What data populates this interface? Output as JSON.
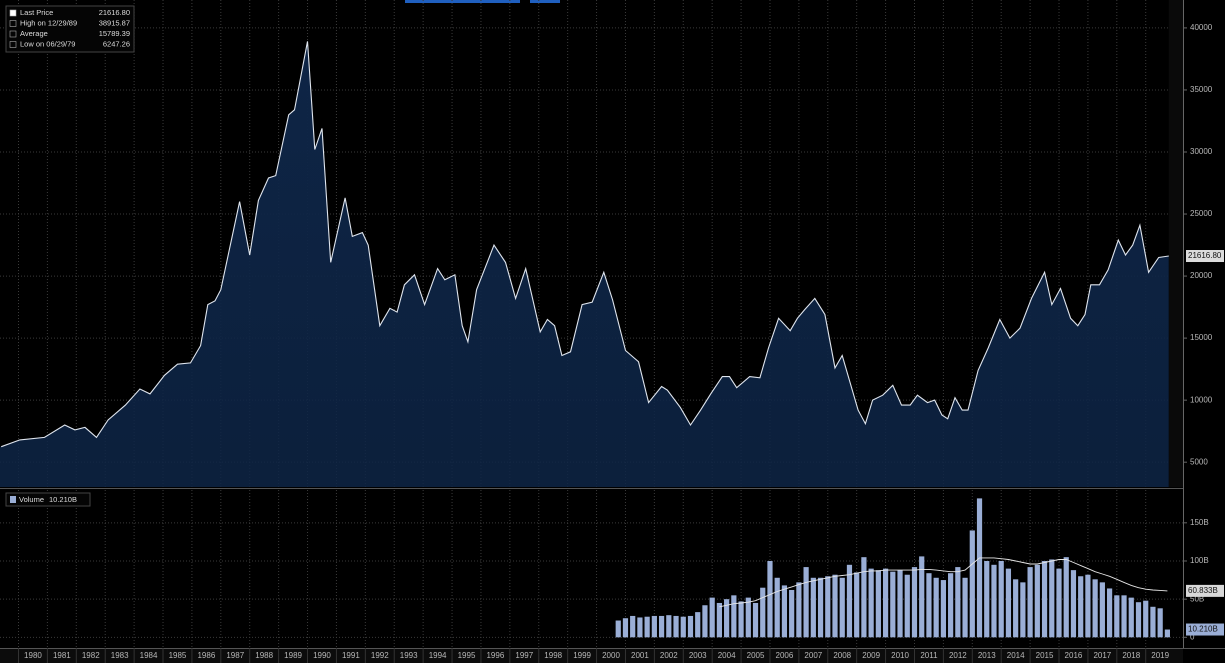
{
  "chart_data": [
    {
      "type": "area",
      "legend": [
        {
          "label": "Last Price",
          "value": "21616.80"
        },
        {
          "label": "High on 12/29/89",
          "value": "38915.87"
        },
        {
          "label": "Average",
          "value": "15789.39"
        },
        {
          "label": "Low on 06/29/79",
          "value": "6247.26"
        }
      ],
      "color": "#0e2546",
      "line_color": "#dfe5ee",
      "x": [
        1979.4,
        1980.05,
        1980.9,
        1981.6,
        1981.95,
        1982.3,
        1982.7,
        1983.1,
        1983.7,
        1984.2,
        1984.55,
        1985.05,
        1985.5,
        1985.95,
        1986.3,
        1986.55,
        1986.8,
        1987.0,
        1987.65,
        1988.0,
        1988.3,
        1988.65,
        1988.9,
        1989.35,
        1989.55,
        1990.0,
        1990.25,
        1990.5,
        1990.8,
        1991.3,
        1991.55,
        1991.9,
        1992.1,
        1992.5,
        1992.85,
        1993.1,
        1993.35,
        1993.7,
        1994.05,
        1994.5,
        1994.75,
        1995.1,
        1995.35,
        1995.55,
        1995.85,
        1996.45,
        1996.85,
        1997.2,
        1997.55,
        1998.05,
        1998.3,
        1998.55,
        1998.8,
        1999.1,
        1999.5,
        1999.85,
        2000.25,
        2000.55,
        2001.0,
        2001.45,
        2001.8,
        2002.25,
        2002.45,
        2002.9,
        2003.25,
        2003.6,
        2003.95,
        2004.35,
        2004.6,
        2004.85,
        2005.3,
        2005.65,
        2005.95,
        2006.3,
        2006.7,
        2006.95,
        2007.2,
        2007.55,
        2007.9,
        2008.25,
        2008.5,
        2009.05,
        2009.3,
        2009.55,
        2009.9,
        2010.25,
        2010.55,
        2010.85,
        2011.1,
        2011.45,
        2011.7,
        2011.95,
        2012.15,
        2012.4,
        2012.65,
        2012.85,
        2013.2,
        2013.55,
        2013.95,
        2014.3,
        2014.65,
        2015.05,
        2015.5,
        2015.75,
        2016.05,
        2016.4,
        2016.65,
        2016.9,
        2017.1,
        2017.4,
        2017.7,
        2018.05,
        2018.3,
        2018.55,
        2018.8,
        2019.1,
        2019.45,
        2019.8
      ],
      "values": [
        6247.26,
        6800,
        7000,
        8000,
        7600,
        7800,
        7000,
        8400,
        9600,
        10900,
        10500,
        12000,
        12900,
        13000,
        14400,
        17700,
        18000,
        18900,
        26000,
        21700,
        26100,
        27900,
        28100,
        33000,
        33400,
        38915.87,
        30200,
        31900,
        21100,
        26300,
        23200,
        23500,
        22500,
        16000,
        17400,
        17100,
        19300,
        20100,
        17700,
        20600,
        19700,
        20100,
        16000,
        14700,
        18900,
        22500,
        21100,
        18200,
        20600,
        15500,
        16500,
        16000,
        13600,
        13900,
        17700,
        17900,
        20300,
        18100,
        14000,
        13100,
        9800,
        11100,
        10800,
        9400,
        8000,
        9200,
        10500,
        11900,
        11900,
        11000,
        11900,
        11800,
        14200,
        16600,
        15600,
        16600,
        17300,
        18200,
        16900,
        12600,
        13600,
        9200,
        8100,
        10000,
        10400,
        11200,
        9600,
        9600,
        10400,
        9800,
        10000,
        8800,
        8500,
        10200,
        9200,
        9200,
        12400,
        14200,
        16500,
        15000,
        15800,
        18200,
        20300,
        17700,
        19000,
        16600,
        16000,
        16900,
        19300,
        19300,
        20500,
        22900,
        21700,
        22500,
        24100,
        20300,
        21500,
        21616.8
      ],
      "xlim": [
        1979.36,
        2020.29
      ],
      "ylim": [
        3000,
        42250
      ],
      "yticks": [
        5000,
        10000,
        15000,
        20000,
        25000,
        30000,
        35000,
        40000
      ],
      "grid": true
    },
    {
      "type": "bar",
      "xlim": [
        1979.36,
        2020.29
      ],
      "xticks": [
        1980,
        1981,
        1982,
        1983,
        1984,
        1985,
        1986,
        1987,
        1988,
        1989,
        1990,
        1991,
        1992,
        1993,
        1994,
        1995,
        1996,
        1997,
        1998,
        1999,
        2000,
        2001,
        2002,
        2003,
        2004,
        2005,
        2006,
        2007,
        2008,
        2009,
        2010,
        2011,
        2012,
        2013,
        2014,
        2015,
        2016,
        2017,
        2018,
        2019
      ],
      "ylim": [
        -14,
        193
      ],
      "yticks": [
        0,
        {
          "value": 50,
          "label": "50B"
        },
        {
          "value": 100,
          "label": "100B"
        },
        {
          "value": 150,
          "label": "150B"
        }
      ],
      "grid": true,
      "x": [
        2000.75,
        2001,
        2001.25,
        2001.5,
        2001.75,
        2002,
        2002.25,
        2002.5,
        2002.75,
        2003,
        2003.25,
        2003.5,
        2003.75,
        2004,
        2004.25,
        2004.5,
        2004.75,
        2005,
        2005.25,
        2005.5,
        2005.75,
        2006,
        2006.25,
        2006.5,
        2006.75,
        2007,
        2007.25,
        2007.5,
        2007.75,
        2008,
        2008.25,
        2008.5,
        2008.75,
        2009,
        2009.25,
        2009.5,
        2009.75,
        2010,
        2010.25,
        2010.5,
        2010.75,
        2011,
        2011.25,
        2011.5,
        2011.75,
        2012,
        2012.25,
        2012.5,
        2012.75,
        2013,
        2013.25,
        2013.5,
        2013.75,
        2014,
        2014.25,
        2014.5,
        2014.75,
        2015,
        2015.25,
        2015.5,
        2015.75,
        2016,
        2016.25,
        2016.5,
        2016.75,
        2017,
        2017.25,
        2017.5,
        2017.75,
        2018,
        2018.25,
        2018.5,
        2018.75,
        2019,
        2019.25,
        2019.5,
        2019.75
      ],
      "series": [
        {
          "name": "Volume",
          "color": "#9aaed6",
          "last_label": "10.210B",
          "values": [
            22,
            25,
            28,
            26,
            27,
            28,
            28,
            29,
            28,
            27,
            28,
            33,
            42,
            52,
            45,
            50,
            55,
            47,
            52,
            45,
            65,
            100,
            78,
            68,
            62,
            72,
            92,
            78,
            78,
            80,
            82,
            78,
            95,
            85,
            105,
            90,
            88,
            90,
            86,
            88,
            82,
            92,
            106,
            84,
            78,
            75,
            84,
            92,
            78,
            140,
            182,
            100,
            95,
            100,
            90,
            76,
            72,
            92,
            95,
            100,
            102,
            90,
            105,
            88,
            80,
            82,
            76,
            72,
            64,
            55,
            55,
            52,
            46,
            48,
            40,
            38,
            10.21
          ]
        },
        {
          "type": "line",
          "color": "#e6e6e6",
          "last_label": "60.833B",
          "values": [
            null,
            null,
            null,
            null,
            null,
            null,
            null,
            null,
            null,
            null,
            null,
            null,
            null,
            null,
            40,
            42,
            44,
            45,
            46,
            48,
            52,
            56,
            60,
            63,
            66,
            69,
            72,
            74,
            76,
            78,
            80,
            81,
            82,
            84,
            86,
            87,
            87,
            88,
            88,
            88,
            88,
            88,
            89,
            89,
            88,
            87,
            86,
            86,
            88,
            96,
            104,
            104,
            104,
            103,
            102,
            100,
            98,
            96,
            96,
            98,
            100,
            102,
            102,
            98,
            94,
            90,
            86,
            83,
            80,
            76,
            72,
            68,
            65,
            63,
            62,
            61.5,
            60.833
          ]
        }
      ]
    }
  ]
}
